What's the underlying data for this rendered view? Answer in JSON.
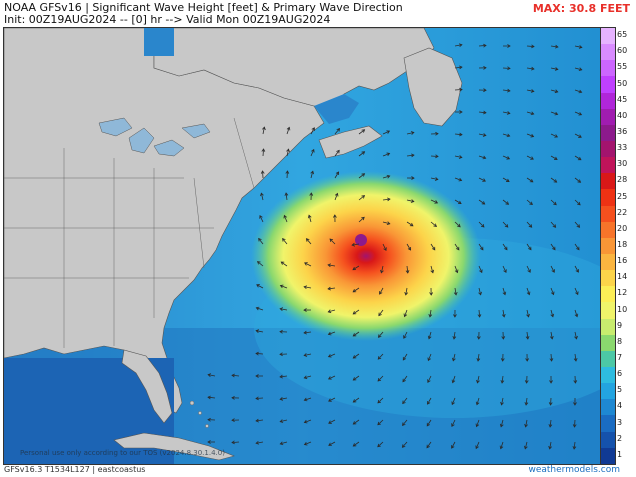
{
  "header": {
    "line1": "NOAA GFSv16 | Significant Wave Height [feet] & Primary Wave Direction",
    "line2": "Init: 00Z19AUG2024 -- [0] hr --> Valid Mon 00Z19AUG2024",
    "max_label": "MAX: 30.8 FEET",
    "max_color": "#e8302a"
  },
  "footer": {
    "model_info": "GFSv16.3 T1534L127 | eastcoastus",
    "brand": "weathermodels.com",
    "disclaimer": "Personal use only according to our TOS (v2024.8.30.1.4.0)"
  },
  "colorbar": {
    "labels": [
      "65",
      "60",
      "55",
      "50",
      "45",
      "40",
      "36",
      "33",
      "30",
      "28",
      "25",
      "22",
      "20",
      "18",
      "16",
      "14",
      "12",
      "10",
      "9",
      "8",
      "7",
      "6",
      "5",
      "4",
      "3",
      "2",
      "1"
    ],
    "colors": [
      "#e6b3ff",
      "#d98cff",
      "#cc66ff",
      "#bf40ff",
      "#b026d9",
      "#a01cb0",
      "#8c1a8c",
      "#a3146e",
      "#c0145a",
      "#d91818",
      "#ee3214",
      "#f5501e",
      "#f7742a",
      "#f99636",
      "#fbb540",
      "#fcd44a",
      "#fcee56",
      "#f0f46a",
      "#c8ec6e",
      "#8ad86e",
      "#4cc8a6",
      "#2ebce0",
      "#23a4e0",
      "#1e88d2",
      "#1a6cc2",
      "#1552ac",
      "#103a94"
    ]
  },
  "map": {
    "land_color": "#c8c8c8",
    "ocean_base": "#3aa0d8",
    "storm_center": "hurricane-center"
  }
}
